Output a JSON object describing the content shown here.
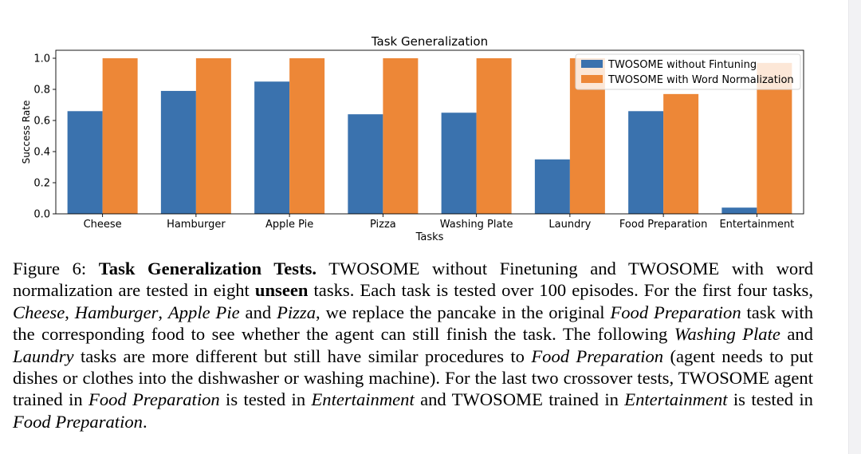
{
  "chart_data": {
    "type": "bar",
    "title": "Task Generalization",
    "xlabel": "Tasks",
    "ylabel": "Success Rate",
    "ylim": [
      0,
      1.0
    ],
    "yticks": [
      0.0,
      0.2,
      0.4,
      0.6,
      0.8,
      1.0
    ],
    "ytick_labels": [
      "0.0",
      "0.2",
      "0.4",
      "0.6",
      "0.8",
      "1.0"
    ],
    "categories": [
      "Cheese",
      "Hamburger",
      "Apple Pie",
      "Pizza",
      "Washing Plate",
      "Laundry",
      "Food Preparation",
      "Entertainment"
    ],
    "series": [
      {
        "name": "TWOSOME without Fintuning",
        "color": "#3a72ae",
        "values": [
          0.66,
          0.79,
          0.85,
          0.64,
          0.65,
          0.35,
          0.66,
          0.04
        ]
      },
      {
        "name": "TWOSOME with Word Normalization",
        "color": "#ed8737",
        "values": [
          1.0,
          1.0,
          1.0,
          1.0,
          1.0,
          1.0,
          0.77,
          0.97
        ]
      }
    ],
    "legend_position": "top-right",
    "grid": false
  },
  "caption": {
    "label": "Figure 6:",
    "bold_title": "Task Generalization Tests.",
    "s1": " TWOSOME without Finetuning and TWOSOME with word normalization are tested in eight ",
    "b1": "unseen",
    "s2": " tasks. Each task is tested over 100 episodes. For the first four tasks, ",
    "i1": "Cheese",
    "s3": ", ",
    "i2": "Hamburger",
    "s4": ", ",
    "i3": "Apple Pie",
    "s5": " and ",
    "i4": "Pizza",
    "s6": ", we replace the pancake in the original ",
    "i5": "Food Preparation",
    "s7": " task with the corresponding food to see whether the agent can still finish the task. The following ",
    "i6": "Washing Plate",
    "s8": " and ",
    "i7": "Laundry",
    "s9": " tasks are more different but still have similar procedures to ",
    "i8": "Food Preparation",
    "s10": " (agent needs to put dishes or clothes into the dishwasher or washing machine). For the last two crossover tests, TWOSOME agent trained in ",
    "i9": "Food Preparation",
    "s11": " is tested in ",
    "i10": "Entertainment",
    "s12": " and TWOSOME trained in ",
    "i11": "Entertainment",
    "s13": " is tested in ",
    "i12": "Food Preparation",
    "s14": "."
  }
}
